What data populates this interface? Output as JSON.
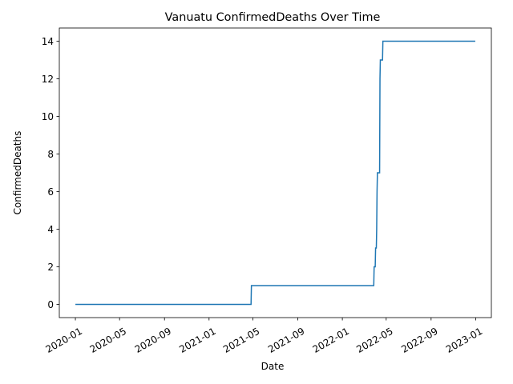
{
  "chart_data": {
    "type": "line",
    "title": "Vanuatu  ConfirmedDeaths Over Time",
    "xlabel": "Date",
    "ylabel": "ConfirmedDeaths",
    "xlim": [
      "2019-11-18",
      "2023-02-13"
    ],
    "ylim": [
      -0.7,
      14.7
    ],
    "grid": false,
    "x_ticks": [
      "2020-01",
      "2020-05",
      "2020-09",
      "2021-01",
      "2021-05",
      "2021-09",
      "2022-01",
      "2022-05",
      "2022-09",
      "2023-01"
    ],
    "y_ticks": [
      0,
      2,
      4,
      6,
      8,
      10,
      12,
      14
    ],
    "series": [
      {
        "color": "#1f77b4",
        "step": true,
        "points": [
          [
            "2020-01-01",
            0
          ],
          [
            "2021-04-26",
            0
          ],
          [
            "2021-04-27",
            1
          ],
          [
            "2022-03-28",
            1
          ],
          [
            "2022-03-29",
            2
          ],
          [
            "2022-04-01",
            2
          ],
          [
            "2022-04-02",
            3
          ],
          [
            "2022-04-04",
            3
          ],
          [
            "2022-04-05",
            4
          ],
          [
            "2022-04-06",
            6
          ],
          [
            "2022-04-07",
            7
          ],
          [
            "2022-04-13",
            7
          ],
          [
            "2022-04-14",
            12
          ],
          [
            "2022-04-15",
            13
          ],
          [
            "2022-04-21",
            13
          ],
          [
            "2022-04-22",
            14
          ],
          [
            "2022-12-31",
            14
          ]
        ]
      }
    ]
  }
}
